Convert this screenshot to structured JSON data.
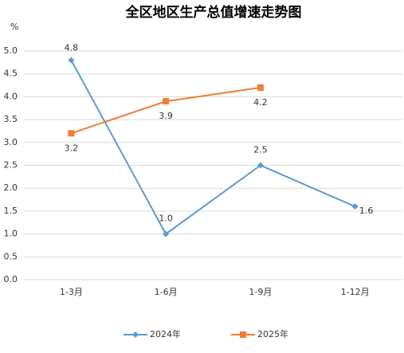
{
  "chart_data": {
    "type": "line",
    "title": "全区地区生产总值增速走势图",
    "ylabel": "%",
    "categories": [
      "1-3月",
      "1-6月",
      "1-9月",
      "1-12月"
    ],
    "series": [
      {
        "name": "2024年",
        "color": "#5b9bd5",
        "marker": "diamond",
        "values": [
          4.8,
          1.0,
          2.5,
          1.6
        ],
        "value_labels": [
          "4.8",
          "1.0",
          "2.5",
          "1.6"
        ]
      },
      {
        "name": "2025年",
        "color": "#ed7d31",
        "marker": "square",
        "values": [
          3.2,
          3.9,
          4.2,
          null
        ],
        "value_labels": [
          "3.2",
          "3.9",
          "4.2",
          null
        ]
      }
    ],
    "ylim": [
      0,
      5
    ],
    "yticks": [
      {
        "value": 0,
        "label": "0.0"
      },
      {
        "value": 0.5,
        "label": "0.5"
      },
      {
        "value": 1,
        "label": "1.0"
      },
      {
        "value": 1.5,
        "label": "1.5"
      },
      {
        "value": 2,
        "label": "2.0"
      },
      {
        "value": 2.5,
        "label": "2.5"
      },
      {
        "value": 3,
        "label": "3.0"
      },
      {
        "value": 3.5,
        "label": "3.5"
      },
      {
        "value": 4,
        "label": "4.0"
      },
      {
        "value": 4.5,
        "label": "4.5"
      },
      {
        "value": 5,
        "label": "5.0"
      }
    ],
    "grid": true,
    "legend": "bottom"
  }
}
